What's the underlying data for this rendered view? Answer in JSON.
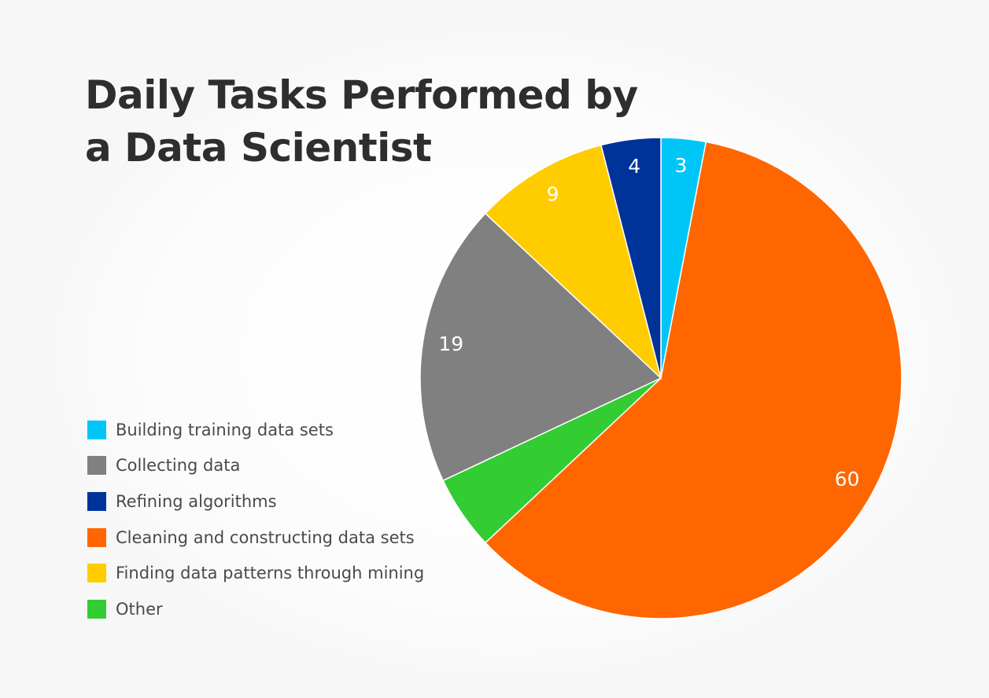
{
  "chart_data": {
    "type": "pie",
    "title": "Daily Tasks Performed by a Data Scientist",
    "categories": [
      "Building training data sets",
      "Collecting data",
      "Refining algorithms",
      "Cleaning and constructing data sets",
      "Finding data patterns through mining",
      "Other"
    ],
    "values": [
      3,
      19,
      4,
      60,
      9,
      5
    ],
    "slice_order": [
      0,
      3,
      5,
      1,
      4,
      2
    ],
    "colors": [
      "#00c6f7",
      "#808080",
      "#003399",
      "#ff6600",
      "#ffcc00",
      "#33cc33"
    ],
    "data_labels": [
      "3",
      "19",
      "4",
      "60",
      "9",
      ""
    ],
    "legend_position": "left"
  }
}
